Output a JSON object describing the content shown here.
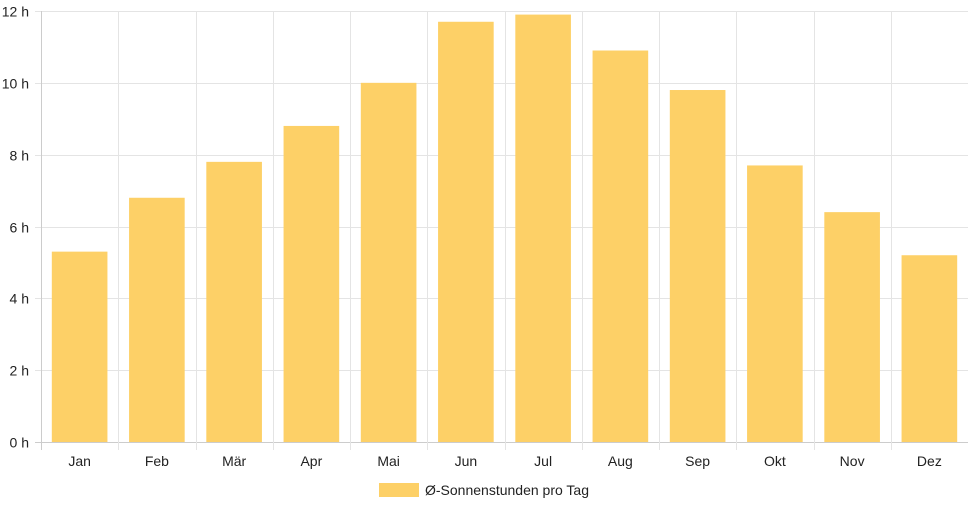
{
  "chart_data": {
    "type": "bar",
    "categories": [
      "Jan",
      "Feb",
      "Mär",
      "Apr",
      "Mai",
      "Jun",
      "Jul",
      "Aug",
      "Sep",
      "Okt",
      "Nov",
      "Dez"
    ],
    "series": [
      {
        "name": "Ø-Sonnenstunden pro Tag",
        "values": [
          5.3,
          6.8,
          7.8,
          8.8,
          10.0,
          11.7,
          11.9,
          10.9,
          9.8,
          7.7,
          6.4,
          5.2
        ]
      }
    ],
    "ylim": [
      0,
      12
    ],
    "y_ticks": [
      0,
      2,
      4,
      6,
      8,
      10,
      12
    ],
    "y_tick_suffix": " h",
    "grid": true,
    "legend_position": "bottom",
    "colors": {
      "bar": "#fdd067",
      "grid": "#e4e4e4",
      "axis": "#cccccc",
      "text": "#222222"
    }
  }
}
